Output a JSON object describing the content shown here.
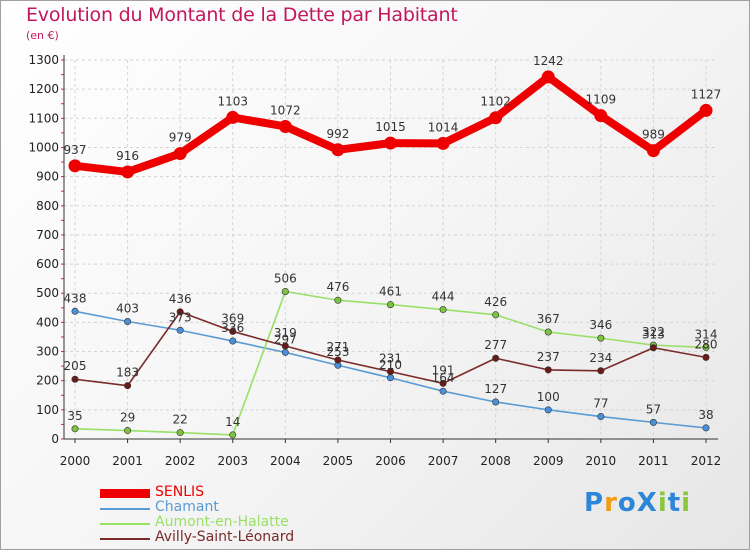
{
  "title": "Evolution du Montant de la Dette par Habitant",
  "subtitle": "(en €)",
  "logo": {
    "text": "ProXiti",
    "letters": [
      "P",
      "r",
      "o",
      "X",
      "i",
      "t",
      "i"
    ],
    "colors": [
      "#2e86d9",
      "#f39c12",
      "#2e86d9",
      "#2e86d9",
      "#8cc63f",
      "#2e86d9",
      "#8cc63f"
    ]
  },
  "chart_data": {
    "type": "line",
    "title": "Evolution du Montant de la Dette par Habitant",
    "subtitle": "(en €)",
    "xlabel": "",
    "ylabel": "",
    "ylim": [
      0,
      1300
    ],
    "yticks": [
      0,
      100,
      200,
      300,
      400,
      500,
      600,
      700,
      800,
      900,
      1000,
      1100,
      1200,
      1300
    ],
    "grid": true,
    "legend_position": "bottom-left",
    "categories": [
      "2000",
      "2001",
      "2002",
      "2003",
      "2004",
      "2005",
      "2006",
      "2007",
      "2008",
      "2009",
      "2010",
      "2011",
      "2012"
    ],
    "series": [
      {
        "name": "SENLIS",
        "color": "#ee0000",
        "values": [
          937,
          916,
          979,
          1103,
          1072,
          992,
          1015,
          1014,
          1102,
          1242,
          1109,
          989,
          1127
        ]
      },
      {
        "name": "Chamant",
        "color": "#5b9bd5",
        "marker_color": "#4a90d9",
        "values": [
          438,
          403,
          373,
          336,
          297,
          253,
          210,
          164,
          127,
          100,
          77,
          57,
          38
        ]
      },
      {
        "name": "Aumont-en-Halatte",
        "color": "#99e066",
        "marker_color": "#7dc242",
        "values": [
          35,
          29,
          22,
          14,
          506,
          476,
          461,
          444,
          426,
          367,
          346,
          322,
          314
        ]
      },
      {
        "name": "Avilly-Saint-Léonard",
        "color": "#7a2a2a",
        "marker_color": "#6b1a1a",
        "values": [
          205,
          183,
          436,
          369,
          319,
          271,
          231,
          191,
          277,
          237,
          234,
          313,
          280
        ]
      }
    ]
  }
}
